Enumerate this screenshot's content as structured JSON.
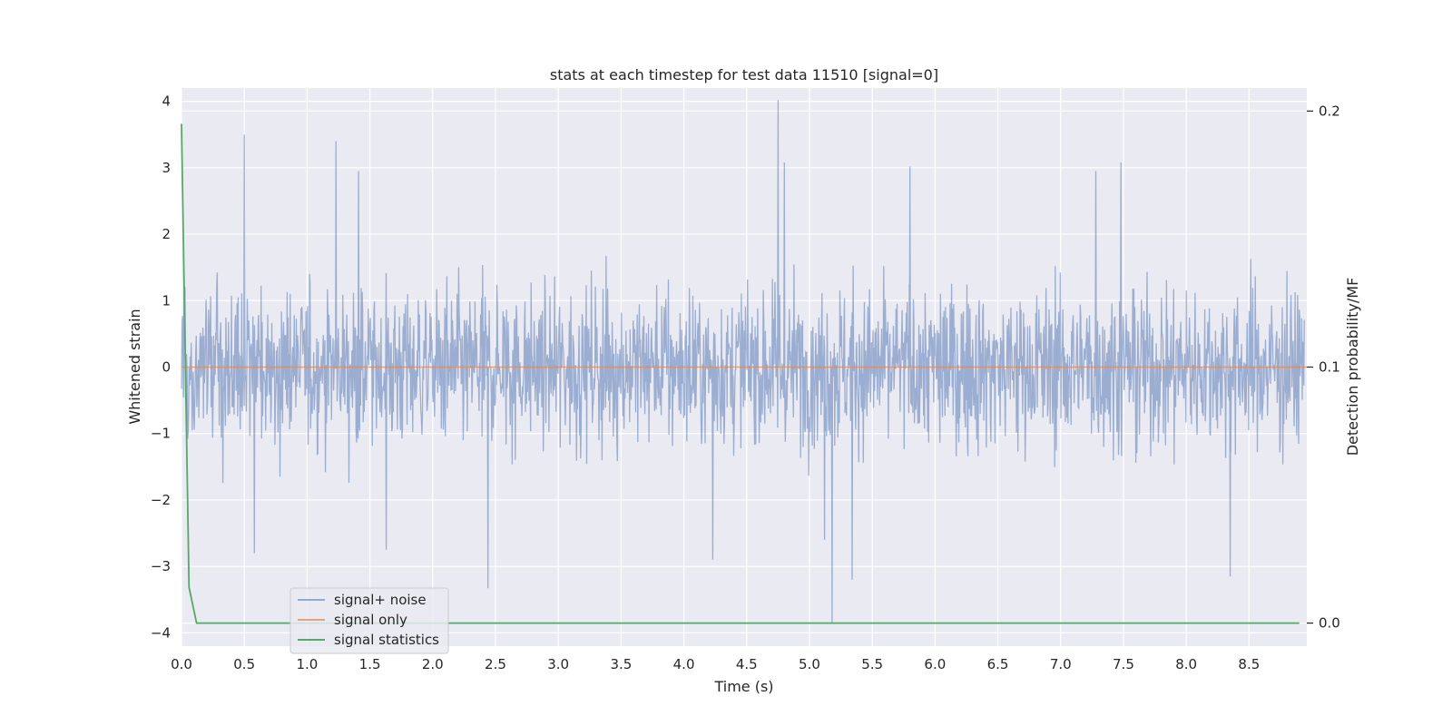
{
  "chart_data": {
    "type": "line",
    "title": "stats at each timestep for test data 11510 [signal=0]",
    "xlabel": "Time (s)",
    "ylabel": "Whitened strain",
    "y2label": "Detection probability/MF",
    "xlim": [
      0.0,
      8.96
    ],
    "ylim": [
      -4.2,
      4.2
    ],
    "y2lim": [
      -0.009,
      0.209
    ],
    "x_ticks": [
      0.0,
      0.5,
      1.0,
      1.5,
      2.0,
      2.5,
      3.0,
      3.5,
      4.0,
      4.5,
      5.0,
      5.5,
      6.0,
      6.5,
      7.0,
      7.5,
      8.0,
      8.5
    ],
    "x_tick_labels": [
      "0.0",
      "0.5",
      "1.0",
      "1.5",
      "2.0",
      "2.5",
      "3.0",
      "3.5",
      "4.0",
      "4.5",
      "5.0",
      "5.5",
      "6.0",
      "6.5",
      "7.0",
      "7.5",
      "8.0",
      "8.5"
    ],
    "y_ticks": [
      4,
      3,
      2,
      1,
      0,
      -1,
      -2,
      -3,
      -4
    ],
    "y_tick_labels": [
      "4",
      "3",
      "2",
      "1",
      "0",
      "−1",
      "−2",
      "−3",
      "−4"
    ],
    "y2_ticks": [
      0.2,
      0.1,
      0.0
    ],
    "y2_tick_labels": [
      "0.2",
      "0.1",
      "0.0"
    ],
    "grid": true,
    "legend_position": "lower-left",
    "series": [
      {
        "name": "signal+ noise",
        "axis": "left",
        "color": "#4c72b0",
        "note_sampled_peaks": "noise trace ~ roughly symmetric around 0, typical amplitude ±1.5, with prominent spikes",
        "peaks": [
          [
            0.5,
            3.5
          ],
          [
            1.23,
            3.4
          ],
          [
            1.41,
            2.95
          ],
          [
            4.75,
            4.02
          ],
          [
            4.8,
            3.08
          ],
          [
            5.8,
            3.02
          ],
          [
            7.48,
            3.08
          ],
          [
            7.28,
            2.95
          ],
          [
            0.58,
            -2.8
          ],
          [
            1.63,
            -2.75
          ],
          [
            2.44,
            -3.33
          ],
          [
            5.18,
            -3.85
          ],
          [
            5.34,
            -3.2
          ],
          [
            8.35,
            -3.15
          ],
          [
            4.23,
            -2.9
          ],
          [
            5.12,
            -2.6
          ]
        ]
      },
      {
        "name": "signal only",
        "axis": "left",
        "color": "#dd8452",
        "x": [
          0.0,
          8.96
        ],
        "y": [
          0.0,
          0.0
        ]
      },
      {
        "name": "signal statistics",
        "axis": "right",
        "color": "#55a868",
        "x": [
          0.0,
          0.06,
          0.12,
          8.9
        ],
        "y": [
          0.195,
          0.014,
          0.0,
          0.0
        ]
      }
    ],
    "legend_entries": [
      "signal+ noise",
      "signal only",
      "signal statistics"
    ],
    "colors": {
      "plot_bg": "#eaeaf2",
      "grid": "#ffffff",
      "noise": "#4c72b0",
      "signal": "#dd8452",
      "stats": "#55a868"
    }
  }
}
